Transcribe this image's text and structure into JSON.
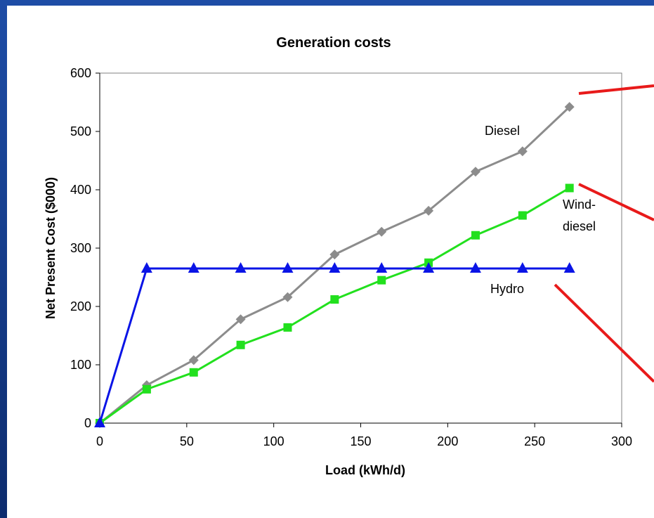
{
  "chart_data": {
    "type": "line",
    "title": "Generation costs",
    "xlabel": "Load (kWh/d)",
    "ylabel": "Net Present Cost ($000)",
    "xlim": [
      0,
      300
    ],
    "ylim": [
      0,
      600
    ],
    "xticks": [
      "0",
      "50",
      "100",
      "150",
      "200",
      "250",
      "300"
    ],
    "yticks": [
      "0",
      "100",
      "200",
      "300",
      "400",
      "500",
      "600"
    ],
    "grid": false,
    "legend": "none",
    "series": [
      {
        "name": "Diesel",
        "color": "#8c8c8c",
        "marker": "diamond",
        "x": [
          0,
          27,
          54,
          81,
          108,
          135,
          162,
          189,
          216,
          243,
          270
        ],
        "values": [
          0,
          65,
          108,
          178,
          216,
          289,
          328,
          364,
          431,
          466,
          542
        ]
      },
      {
        "name": "Wind-diesel",
        "label_lines": [
          "Wind-",
          "diesel"
        ],
        "color": "#22e01e",
        "marker": "square",
        "x": [
          0,
          27,
          54,
          81,
          108,
          135,
          162,
          189,
          216,
          243,
          270
        ],
        "values": [
          0,
          58,
          87,
          134,
          164,
          212,
          245,
          275,
          322,
          356,
          403
        ]
      },
      {
        "name": "Hydro",
        "color": "#0a14e6",
        "marker": "triangle",
        "x": [
          0,
          27,
          54,
          81,
          108,
          135,
          162,
          189,
          216,
          243,
          270
        ],
        "values": [
          0,
          265,
          265,
          265,
          265,
          265,
          265,
          265,
          265,
          265,
          265
        ]
      }
    ],
    "pointers_color": "#e81a1a"
  }
}
